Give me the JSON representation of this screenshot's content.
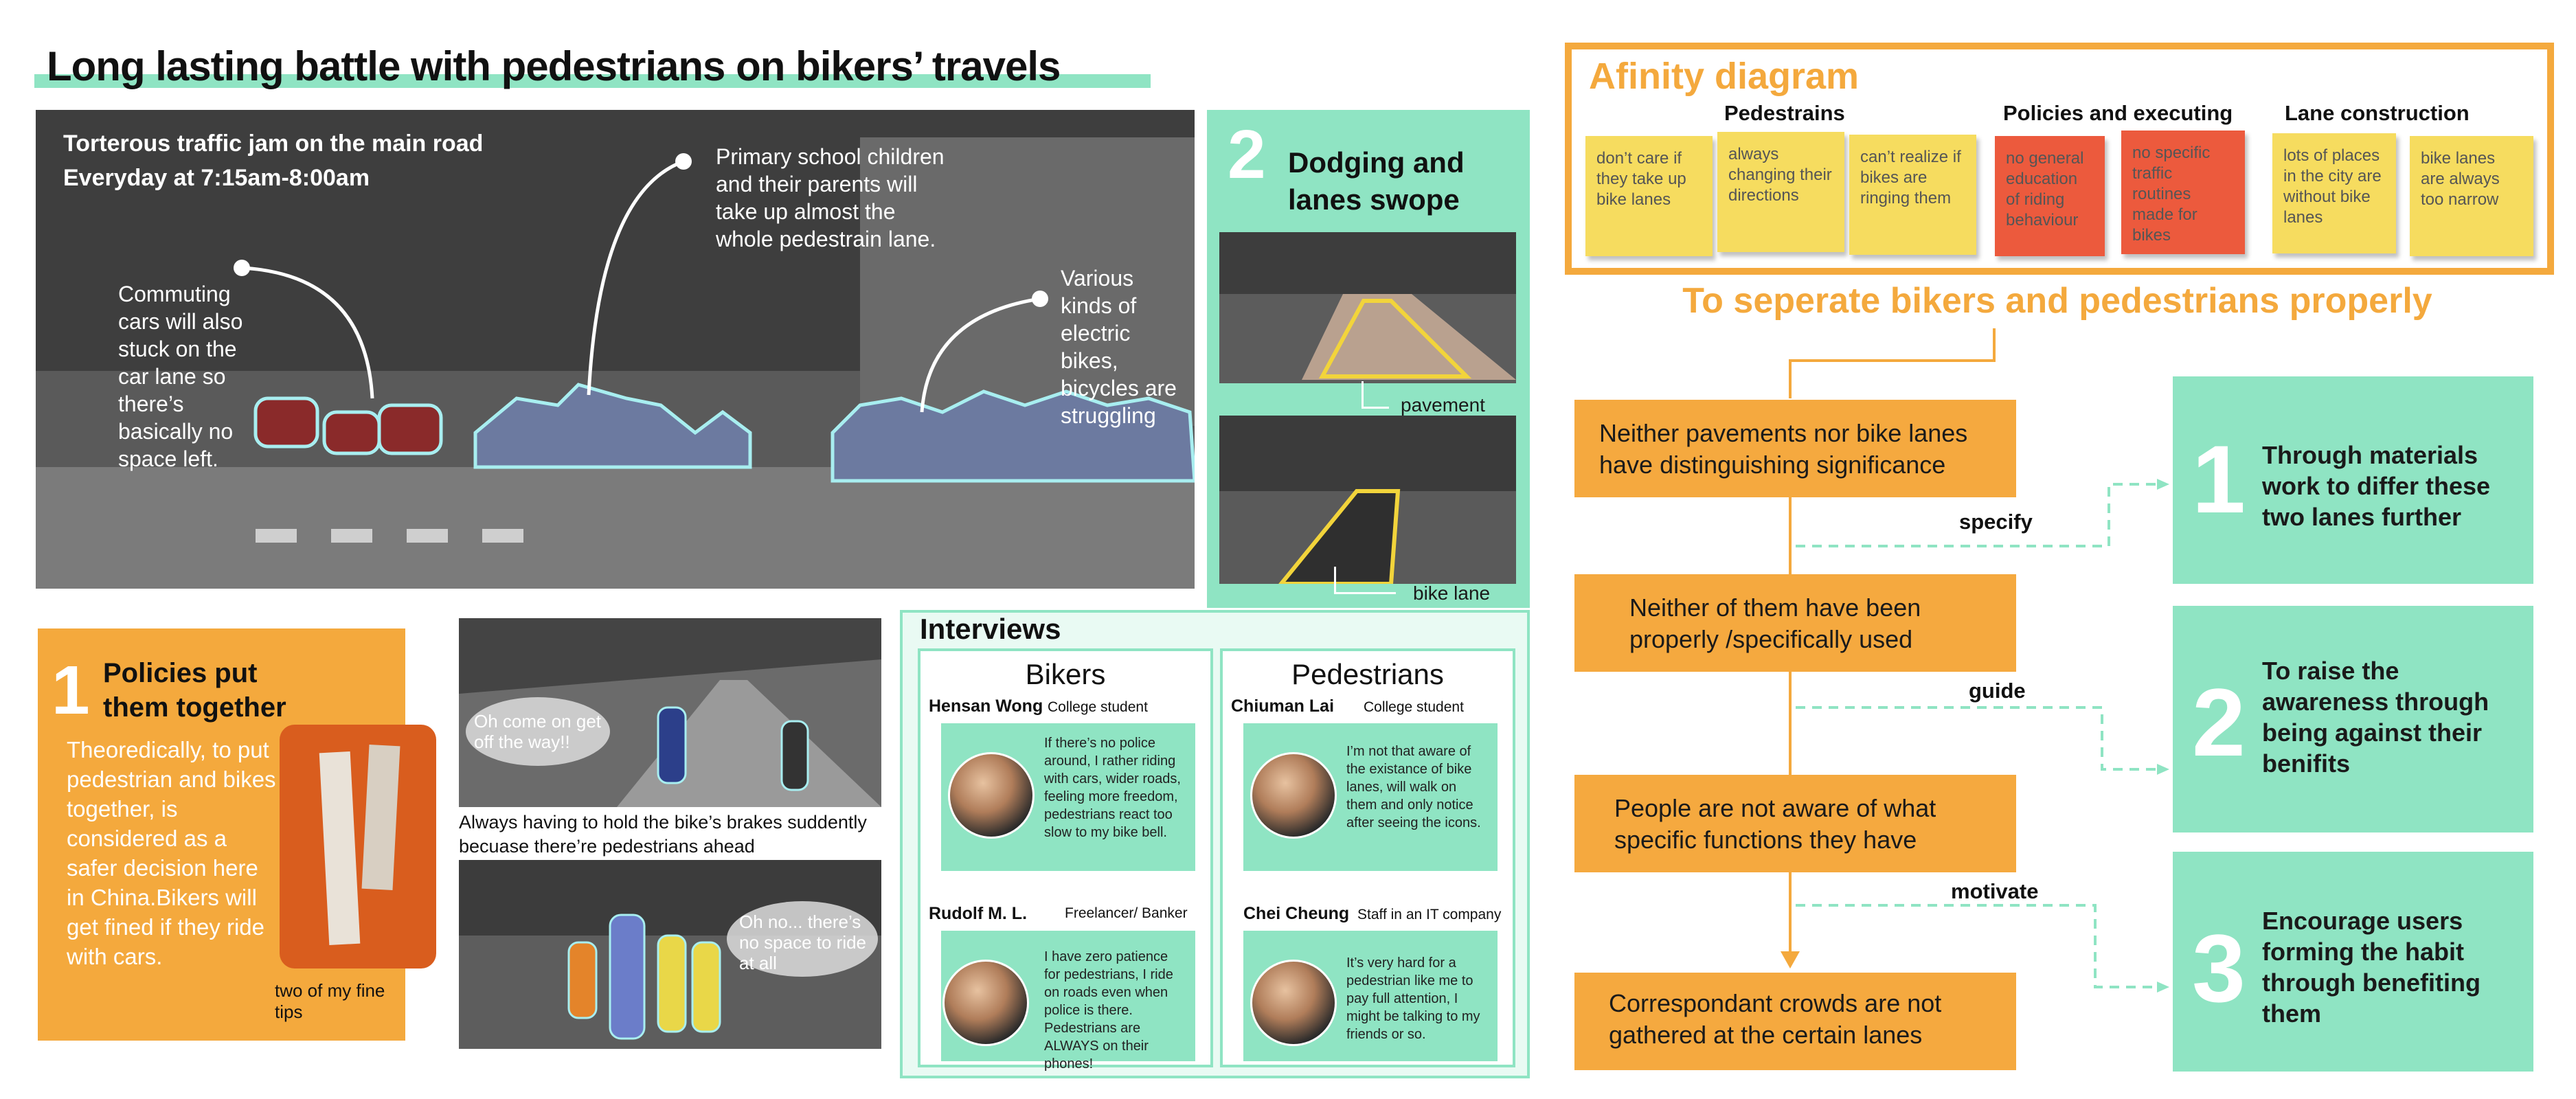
{
  "title": "Long lasting battle with pedestrians  on bikers’ travels",
  "main_photo": {
    "caption_line1": "Torterous traffic jam on the main road",
    "caption_line2": "Everyday at 7:15am-8:00am",
    "note_cars": "Commuting cars will also stuck on the car lane so there’s basically no space left.",
    "note_children": "Primary school children and their parents will take up almost the whole pedestrain lane.",
    "note_bikes": "Various kinds of electric bikes, bicycles are struggling"
  },
  "dodging": {
    "number": "2",
    "title": "Dodging and lanes swope",
    "label_pavement": "pavement",
    "label_bikelane": "bike lane"
  },
  "policies": {
    "number": "1",
    "title": "Policies put them together",
    "body": "Theoredically, to put pedestrian and bikes together, is considered as a safer decision here in China.Bikers will get fined if they ride with cars.",
    "photo_caption": "two of my fine tips"
  },
  "brakes": {
    "bubble1": "Oh come on get off the way!!",
    "caption": "Always having to hold the bike’s brakes suddently becuase there’re pedestrians ahead",
    "bubble2": "Oh no... there’s no space to ride at all"
  },
  "interviews": {
    "title": "Interviews",
    "bikers": {
      "heading": "Bikers",
      "people": [
        {
          "name": "Hensan Wong",
          "role": "College student",
          "quote": "If there’s no police around, I rather riding with cars, wider roads, feeling more freedom, pedestrians react too slow to my bike bell."
        },
        {
          "name": "Rudolf M. L.",
          "role": "Freelancer/ Banker",
          "quote": "I have zero patience for pedestrians, I ride on roads even when police is there. Pedestrians are ALWAYS on their phones!"
        }
      ]
    },
    "pedestrians": {
      "heading": "Pedestrians",
      "people": [
        {
          "name": "Chiuman Lai",
          "role": "College student",
          "quote": "I’m not that aware of the existance of bike lanes, will walk on them and only notice after seeing the icons."
        },
        {
          "name": "Chei Cheung",
          "role": "Staff in an IT company",
          "quote": "It’s very hard for a pedestrian like me to pay full attention, I might be talking to my friends or so."
        }
      ]
    }
  },
  "affinity": {
    "title": "Afinity diagram",
    "groups": [
      {
        "label": "Pedestrains",
        "notes": [
          "don’t care if they take up bike lanes",
          "always changing their directions",
          "can’t realize if bikes are ringing them"
        ]
      },
      {
        "label": "Policies and executing",
        "notes": [
          "no general education of riding behaviour",
          "no specific traffic routines made for bikes"
        ]
      },
      {
        "label": "Lane construction",
        "notes": [
          "lots of places in the city are without bike lanes",
          "bike lanes are always too narrow"
        ]
      }
    ],
    "colors": {
      "yellow": "#f6dc5f",
      "red": "#ec5a3d",
      "orange_border": "#f4a93d"
    }
  },
  "flow": {
    "heading": "To seperate bikers and pedestrians properly",
    "problems": [
      "Neither pavements nor bike lanes have distinguishing significance",
      "Neither of them have been properly /specifically used",
      "People are not aware of what specific functions they have",
      "Correspondant crowds are not gathered at the certain lanes"
    ],
    "verbs": [
      "specify",
      "guide",
      "motivate"
    ],
    "solutions": [
      {
        "number": "1",
        "text": "Through materials work to differ these two lanes further"
      },
      {
        "number": "2",
        "text": "To raise the awareness through being against their benifits"
      },
      {
        "number": "3",
        "text": "Encourage users forming the habit through benefiting them"
      }
    ]
  },
  "colors": {
    "mint": "#8fe4c3",
    "orange": "#f4a93d",
    "dark": "#1a1a1a"
  }
}
